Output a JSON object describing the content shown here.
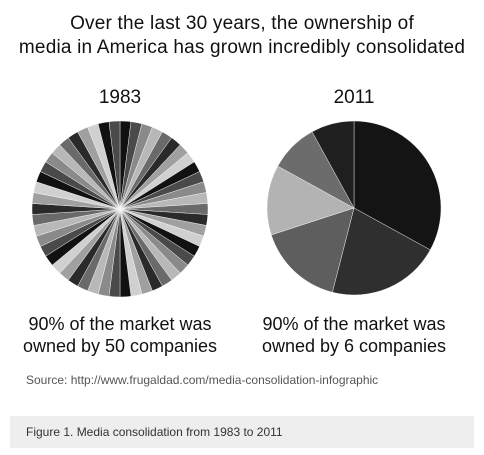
{
  "headline": {
    "line1": "Over the last 30 years, the ownership of",
    "line2": "media in America has grown incredibly consolidated"
  },
  "chart_data": [
    {
      "type": "pie",
      "title": "1983",
      "slice_count": 50,
      "values": [
        1,
        1,
        1,
        1,
        1,
        1,
        1,
        1,
        1,
        1,
        1,
        1,
        1,
        1,
        1,
        1,
        1,
        1,
        1,
        1,
        1,
        1,
        1,
        1,
        1,
        1,
        1,
        1,
        1,
        1,
        1,
        1,
        1,
        1,
        1,
        1,
        1,
        1,
        1,
        1,
        1,
        1,
        1,
        1,
        1,
        1,
        1,
        1,
        1,
        1
      ],
      "colors": [
        "#111111",
        "#4a4a4a",
        "#8a8a8a",
        "#b8b8b8",
        "#6a6a6a",
        "#2a2a2a",
        "#a0a0a0",
        "#d0d0d0"
      ],
      "caption_line1": "90% of the market was",
      "caption_line2": "owned by 50 companies"
    },
    {
      "type": "pie",
      "title": "2011",
      "values": [
        33,
        21,
        16,
        13,
        9,
        8
      ],
      "colors": [
        "#141414",
        "#2f2f2f",
        "#5e5e5e",
        "#b3b3b3",
        "#6c6c6c",
        "#1f1f1f"
      ],
      "caption_line1": "90% of the market was",
      "caption_line2": "owned by 6 companies"
    }
  ],
  "source": "Source: http://www.frugaldad.com/media-consolidation-infographic",
  "figure_caption": "Figure 1. Media consolidation from 1983 to 2011"
}
